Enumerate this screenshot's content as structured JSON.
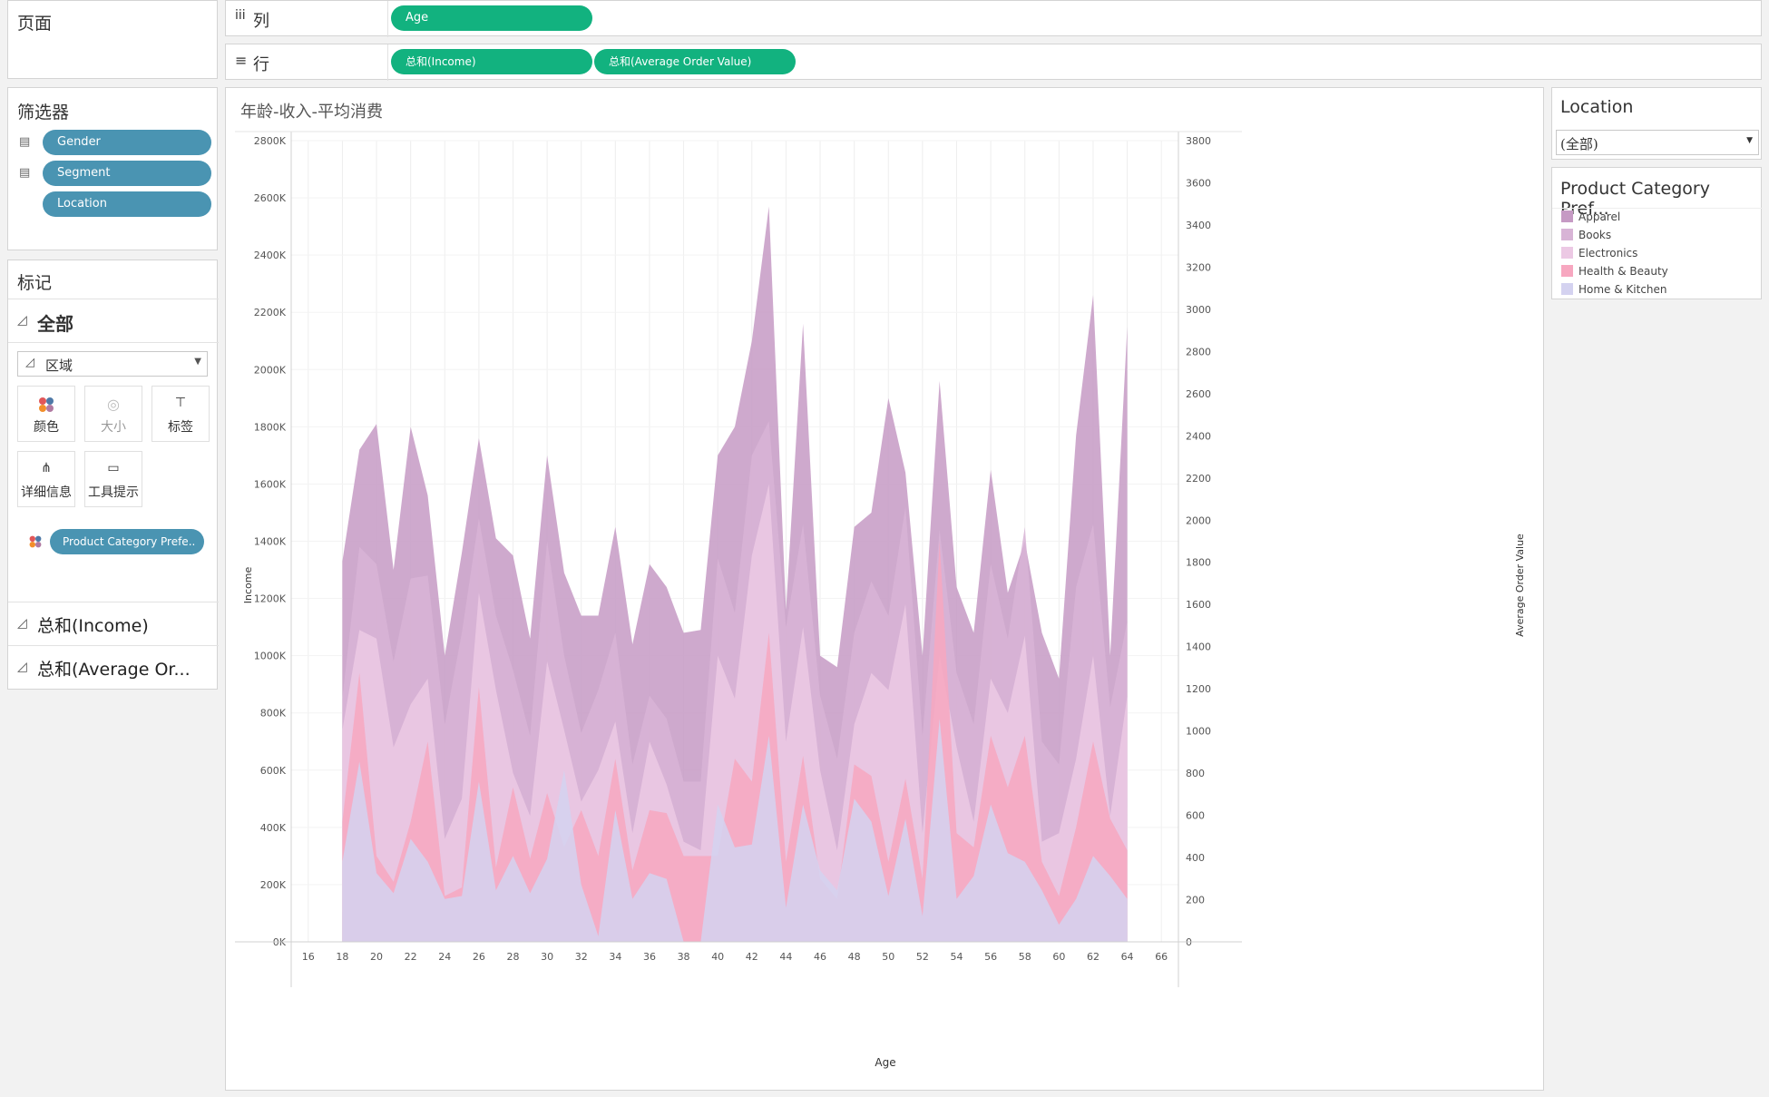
{
  "pages_panel": {
    "title": "页面"
  },
  "columns_shelf": {
    "icon": "iii",
    "label": "列",
    "pills": [
      "Age"
    ]
  },
  "rows_shelf": {
    "icon": "≡",
    "label": "行",
    "pills": [
      "总和(Income)",
      "总和(Average Order Value)"
    ]
  },
  "filters": {
    "title": "筛选器",
    "pills": [
      "Gender",
      "Segment",
      "Location"
    ]
  },
  "marks": {
    "title": "标记",
    "all_label": "全部",
    "mark_type": "区域",
    "buttons": {
      "color": "颜色",
      "size": "大小",
      "label": "标签",
      "detail": "详细信息",
      "tooltip": "工具提示"
    },
    "color_pill": "Product Category Prefe..",
    "income_section": "总和(Income)",
    "aov_section": "总和(Average Or..."
  },
  "location_filter": {
    "title": "Location",
    "value": "(全部)"
  },
  "legend": {
    "title": "Product Category Pref...",
    "items": [
      {
        "name": "Apparel",
        "color": "#c69ac4"
      },
      {
        "name": "Books",
        "color": "#d8b4d6"
      },
      {
        "name": "Electronics",
        "color": "#ecc9e4"
      },
      {
        "name": "Health & Beauty",
        "color": "#f7a7c0"
      },
      {
        "name": "Home & Kitchen",
        "color": "#d4d2f0"
      }
    ]
  },
  "chart_data": {
    "type": "area",
    "title": "年龄-收入-平均消费",
    "xlabel": "Age",
    "ylabel": "Income",
    "y2label": "Average Order Value",
    "xlim": [
      15,
      67
    ],
    "ylim": [
      0,
      2800000
    ],
    "y2lim": [
      0,
      3800
    ],
    "x_ticks": [
      "16",
      "18",
      "20",
      "22",
      "24",
      "26",
      "28",
      "30",
      "32",
      "34",
      "36",
      "38",
      "40",
      "42",
      "44",
      "46",
      "48",
      "50",
      "52",
      "54",
      "56",
      "58",
      "60",
      "62",
      "64",
      "66"
    ],
    "y_ticks": [
      "0K",
      "200K",
      "400K",
      "600K",
      "800K",
      "1000K",
      "1200K",
      "1400K",
      "1600K",
      "1800K",
      "2000K",
      "2200K",
      "2400K",
      "2600K",
      "2800K"
    ],
    "y2_ticks": [
      "0",
      "200",
      "400",
      "600",
      "800",
      "1000",
      "1200",
      "1400",
      "1600",
      "1800",
      "2000",
      "2200",
      "2400",
      "2600",
      "2800",
      "3000",
      "3200",
      "3400",
      "3600",
      "3800"
    ],
    "x": [
      18,
      19,
      20,
      21,
      22,
      23,
      24,
      25,
      26,
      27,
      28,
      29,
      30,
      31,
      32,
      33,
      34,
      35,
      36,
      37,
      38,
      39,
      40,
      41,
      42,
      43,
      44,
      45,
      46,
      47,
      48,
      49,
      50,
      51,
      52,
      53,
      54,
      55,
      56,
      57,
      58,
      59,
      60,
      61,
      62,
      63,
      64
    ],
    "series": [
      {
        "name": "Home & Kitchen",
        "values": [
          280000,
          630000,
          240000,
          170000,
          360000,
          280000,
          150000,
          160000,
          560000,
          180000,
          300000,
          170000,
          290000,
          600000,
          200000,
          20000,
          460000,
          150000,
          240000,
          220000,
          0,
          0,
          480000,
          330000,
          340000,
          720000,
          120000,
          480000,
          250000,
          180000,
          500000,
          420000,
          160000,
          430000,
          90000,
          780000,
          150000,
          230000,
          480000,
          310000,
          280000,
          180000,
          60000,
          150000,
          300000,
          230000,
          150000
        ]
      },
      {
        "name": "Health & Beauty",
        "values": [
          420000,
          940000,
          300000,
          210000,
          420000,
          700000,
          160000,
          190000,
          890000,
          260000,
          540000,
          290000,
          520000,
          330000,
          460000,
          300000,
          640000,
          250000,
          460000,
          450000,
          300000,
          300000,
          300000,
          640000,
          560000,
          1080000,
          280000,
          650000,
          220000,
          150000,
          620000,
          580000,
          280000,
          570000,
          220000,
          1400000,
          380000,
          330000,
          720000,
          540000,
          720000,
          280000,
          160000,
          400000,
          700000,
          430000,
          320000
        ]
      },
      {
        "name": "Electronics",
        "values": [
          740000,
          1090000,
          1060000,
          680000,
          830000,
          920000,
          360000,
          500000,
          1220000,
          880000,
          590000,
          440000,
          980000,
          740000,
          490000,
          600000,
          770000,
          380000,
          700000,
          550000,
          350000,
          320000,
          1000000,
          850000,
          1350000,
          1600000,
          700000,
          1100000,
          600000,
          320000,
          760000,
          940000,
          880000,
          1180000,
          380000,
          1000000,
          680000,
          420000,
          920000,
          800000,
          1070000,
          350000,
          380000,
          640000,
          1000000,
          440000,
          860000
        ]
      },
      {
        "name": "Books",
        "values": [
          850000,
          1380000,
          1320000,
          980000,
          1270000,
          1280000,
          760000,
          1080000,
          1480000,
          1140000,
          950000,
          720000,
          1400000,
          1000000,
          730000,
          880000,
          1080000,
          620000,
          860000,
          780000,
          560000,
          560000,
          1340000,
          1150000,
          1700000,
          1820000,
          1100000,
          1460000,
          860000,
          640000,
          1080000,
          1260000,
          1140000,
          1520000,
          720000,
          1440000,
          940000,
          760000,
          1320000,
          1060000,
          1450000,
          700000,
          620000,
          1240000,
          1460000,
          820000,
          1120000
        ]
      },
      {
        "name": "Apparel",
        "values": [
          1330000,
          1720000,
          1810000,
          1300000,
          1800000,
          1560000,
          1000000,
          1360000,
          1760000,
          1410000,
          1350000,
          1060000,
          1700000,
          1290000,
          1140000,
          1140000,
          1450000,
          1040000,
          1320000,
          1240000,
          1080000,
          1090000,
          1700000,
          1800000,
          2100000,
          2570000,
          1160000,
          2160000,
          1000000,
          960000,
          1450000,
          1500000,
          1900000,
          1640000,
          1000000,
          1960000,
          1240000,
          1080000,
          1650000,
          1220000,
          1400000,
          1080000,
          920000,
          1770000,
          2260000,
          1000000,
          2150000
        ]
      }
    ]
  }
}
